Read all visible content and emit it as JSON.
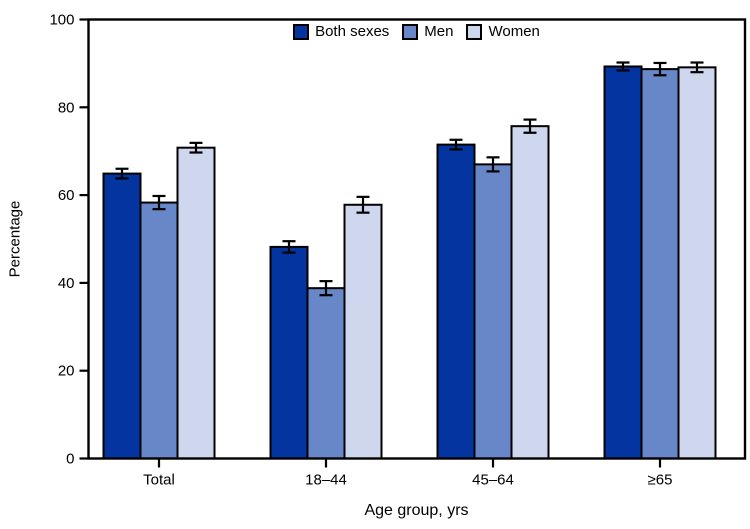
{
  "figure": {
    "background": "#ffffff",
    "axis_color": "#000000"
  },
  "chart_data": {
    "type": "bar",
    "title": "",
    "xlabel": "Age group, yrs",
    "ylabel": "Percentage",
    "categories": [
      "Total",
      "18–44",
      "45–64",
      "≥65"
    ],
    "series": [
      {
        "name": "Both sexes",
        "color": "#0434a0",
        "values": [
          64.9,
          48.2,
          71.5,
          89.3
        ],
        "errors": [
          1.1,
          1.3,
          1.1,
          0.9
        ]
      },
      {
        "name": "Men",
        "color": "#6787c8",
        "values": [
          58.3,
          38.8,
          67.0,
          88.7
        ],
        "errors": [
          1.5,
          1.6,
          1.6,
          1.4
        ]
      },
      {
        "name": "Women",
        "color": "#ced7ed",
        "values": [
          70.8,
          57.8,
          75.7,
          89.1
        ],
        "errors": [
          1.1,
          1.8,
          1.5,
          1.1
        ]
      }
    ],
    "ylim": [
      0,
      100
    ],
    "yticks": [
      0,
      20,
      40,
      60,
      80,
      100
    ],
    "grid": false,
    "error_bars": true,
    "legend_position": "top-center"
  }
}
